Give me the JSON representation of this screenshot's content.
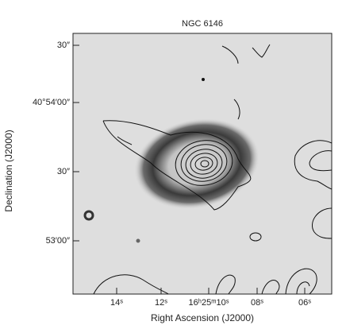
{
  "figure": {
    "title": "NGC 6146",
    "x_label": "Right Ascension (J2000)",
    "y_label": "Declination (J2000)",
    "x_tick_labels": [
      "14ˢ",
      "12ˢ",
      "16ʰ25ᵐ10ˢ",
      "08ˢ",
      "06ˢ"
    ],
    "y_tick_labels": [
      "30″",
      "40°54′00″",
      "30″",
      "53′00″"
    ]
  }
}
